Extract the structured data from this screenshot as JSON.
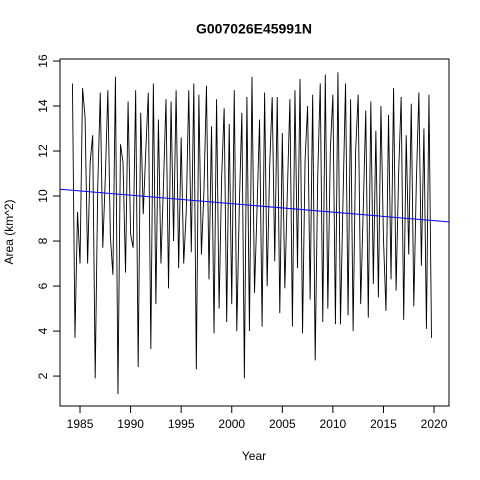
{
  "chart_data": {
    "type": "line",
    "title": "G007026E45991N",
    "xlabel": "Year",
    "ylabel": "Area (km^2)",
    "x": [
      1984.25,
      1984.5,
      1984.75,
      1985,
      1985.25,
      1985.5,
      1985.75,
      1986,
      1986.25,
      1986.5,
      1986.75,
      1987,
      1987.25,
      1987.5,
      1987.75,
      1988,
      1988.25,
      1988.5,
      1988.75,
      1989,
      1989.25,
      1989.5,
      1989.75,
      1990,
      1990.25,
      1990.5,
      1990.75,
      1991,
      1991.25,
      1991.5,
      1991.75,
      1992,
      1992.25,
      1992.5,
      1992.75,
      1993,
      1993.25,
      1993.5,
      1993.75,
      1994,
      1994.25,
      1994.5,
      1994.75,
      1995,
      1995.25,
      1995.5,
      1995.75,
      1996,
      1996.25,
      1996.5,
      1996.75,
      1997,
      1997.25,
      1997.5,
      1997.75,
      1998,
      1998.25,
      1998.5,
      1998.75,
      1999,
      1999.25,
      1999.5,
      1999.75,
      2000,
      2000.25,
      2000.5,
      2000.75,
      2001,
      2001.25,
      2001.5,
      2001.75,
      2002,
      2002.25,
      2002.5,
      2002.75,
      2003,
      2003.25,
      2003.5,
      2003.75,
      2004,
      2004.25,
      2004.5,
      2004.75,
      2005,
      2005.25,
      2005.5,
      2005.75,
      2006,
      2006.25,
      2006.5,
      2006.75,
      2007,
      2007.25,
      2007.5,
      2007.75,
      2008,
      2008.25,
      2008.5,
      2008.75,
      2009,
      2009.25,
      2009.5,
      2009.75,
      2010,
      2010.25,
      2010.5,
      2010.75,
      2011,
      2011.25,
      2011.5,
      2011.75,
      2012,
      2012.25,
      2012.5,
      2012.75,
      2013,
      2013.25,
      2013.5,
      2013.75,
      2014,
      2014.25,
      2014.5,
      2014.75,
      2015,
      2015.25,
      2015.5,
      2015.75,
      2016,
      2016.25,
      2016.5,
      2016.75,
      2017,
      2017.25,
      2017.5,
      2017.75,
      2018,
      2018.25,
      2018.5,
      2018.75,
      2019,
      2019.25,
      2019.5,
      2019.75
    ],
    "series": [
      {
        "color": "#000000",
        "values": [
          15.0,
          3.7,
          9.3,
          7.0,
          14.8,
          13.5,
          7.0,
          11.5,
          12.7,
          1.9,
          10.4,
          14.6,
          7.7,
          10.8,
          14.7,
          8.2,
          6.5,
          15.3,
          1.2,
          12.3,
          11.5,
          6.6,
          14.2,
          8.3,
          7.7,
          14.7,
          2.4,
          13.7,
          9.2,
          12.0,
          14.6,
          3.2,
          15.0,
          5.2,
          13.4,
          7.0,
          10.5,
          14.3,
          5.9,
          14.2,
          8.0,
          14.7,
          6.8,
          12.6,
          7.0,
          9.3,
          14.7,
          7.5,
          15.0,
          2.3,
          14.5,
          7.4,
          10.2,
          14.9,
          6.3,
          13.1,
          3.9,
          14.3,
          5.0,
          10.8,
          13.9,
          4.4,
          13.2,
          5.2,
          14.7,
          4.0,
          9.6,
          13.7,
          1.9,
          14.4,
          4.0,
          15.3,
          5.7,
          9.4,
          13.4,
          4.2,
          14.6,
          6.0,
          11.3,
          14.4,
          7.1,
          14.4,
          4.8,
          12.8,
          5.9,
          10.2,
          14.3,
          4.2,
          14.7,
          6.8,
          15.2,
          3.9,
          11.6,
          14.0,
          5.4,
          14.5,
          2.7,
          10.9,
          15.0,
          4.4,
          15.4,
          5.0,
          12.1,
          14.5,
          4.3,
          15.5,
          4.3,
          9.8,
          15.0,
          4.7,
          14.3,
          4.0,
          12.0,
          14.5,
          5.2,
          9.4,
          13.8,
          4.6,
          14.2,
          6.1,
          12.9,
          5.5,
          14.0,
          8.1,
          4.9,
          13.6,
          6.3,
          14.8,
          5.8,
          11.0,
          14.4,
          4.5,
          12.7,
          7.4,
          14.1,
          5.1,
          10.6,
          14.6,
          6.9,
          13.0,
          4.1,
          14.5,
          3.7
        ]
      }
    ],
    "trend": {
      "color": "#0000ff",
      "x": [
        1983.02,
        2021.48
      ],
      "values": [
        10.3,
        8.85
      ]
    },
    "xlim": [
      1983.02,
      2021.48
    ],
    "ylim": [
      0.67,
      16.09
    ],
    "xticks": [
      1985,
      1990,
      1995,
      2000,
      2005,
      2010,
      2015,
      2020
    ],
    "yticks": [
      2,
      4,
      6,
      8,
      10,
      12,
      14,
      16
    ]
  }
}
